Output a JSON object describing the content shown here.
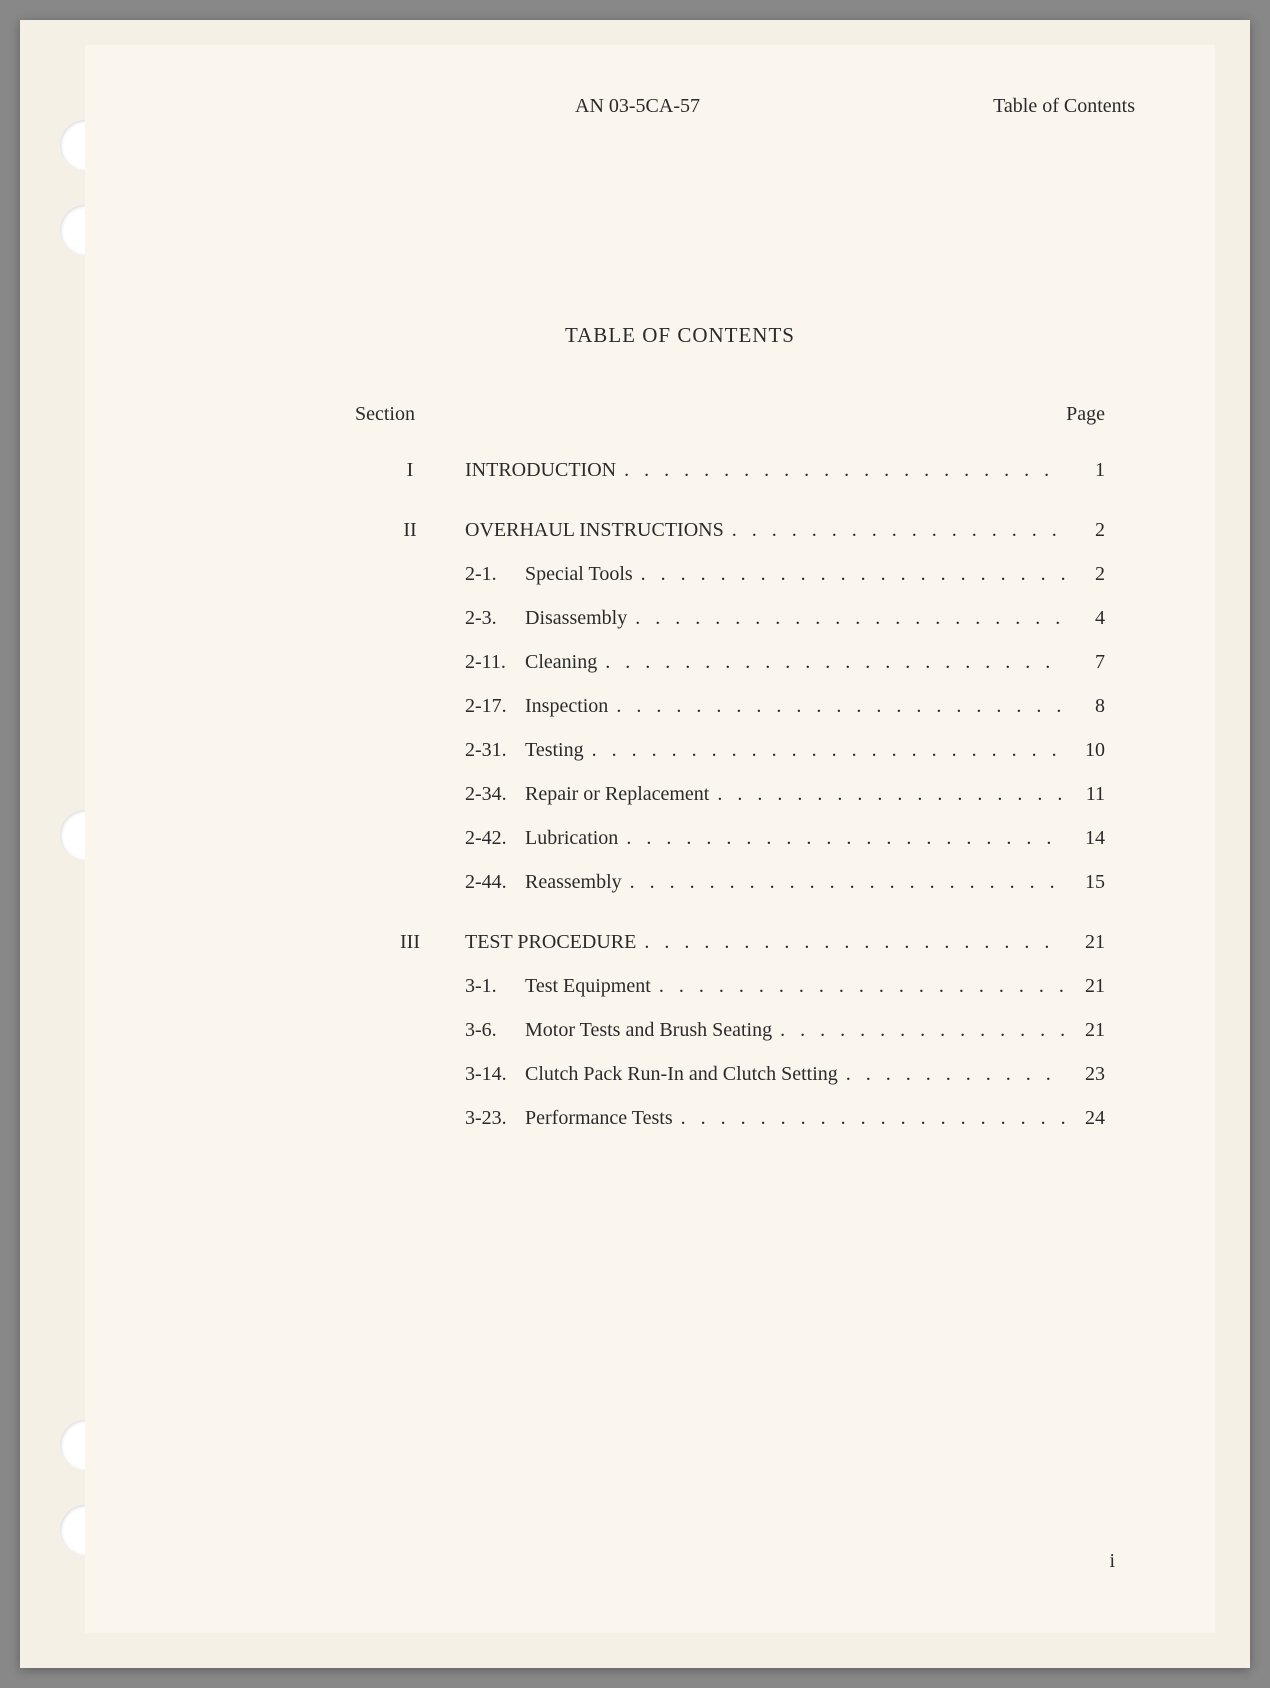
{
  "header": {
    "documentNumber": "AN 03-5CA-57",
    "pageLabel": "Table of Contents"
  },
  "title": "TABLE OF CONTENTS",
  "columnHeaders": {
    "section": "Section",
    "page": "Page"
  },
  "sections": [
    {
      "roman": "I",
      "title": "INTRODUCTION",
      "page": "1",
      "entries": []
    },
    {
      "roman": "II",
      "title": "OVERHAUL INSTRUCTIONS",
      "page": "2",
      "entries": [
        {
          "num": "2-1.",
          "text": "Special Tools",
          "page": "2"
        },
        {
          "num": "2-3.",
          "text": "Disassembly",
          "page": "4"
        },
        {
          "num": "2-11.",
          "text": "Cleaning",
          "page": "7"
        },
        {
          "num": "2-17.",
          "text": "Inspection",
          "page": "8"
        },
        {
          "num": "2-31.",
          "text": "Testing",
          "page": "10"
        },
        {
          "num": "2-34.",
          "text": "Repair or Replacement",
          "page": "11"
        },
        {
          "num": "2-42.",
          "text": "Lubrication",
          "page": "14"
        },
        {
          "num": "2-44.",
          "text": "Reassembly",
          "page": "15"
        }
      ]
    },
    {
      "roman": "III",
      "title": "TEST PROCEDURE",
      "page": "21",
      "entries": [
        {
          "num": "3-1.",
          "text": "Test Equipment",
          "page": "21"
        },
        {
          "num": "3-6.",
          "text": "Motor Tests and Brush Seating",
          "page": "21"
        },
        {
          "num": "3-14.",
          "text": "Clutch Pack Run-In and Clutch Setting",
          "page": "23"
        },
        {
          "num": "3-23.",
          "text": "Performance Tests",
          "page": "24"
        }
      ]
    }
  ],
  "footer": {
    "pageNumber": "i"
  },
  "dots": ". . . . . . . . . . . . . . . . . . . . . . . . . . . . . . . . . . . . . . . ."
}
